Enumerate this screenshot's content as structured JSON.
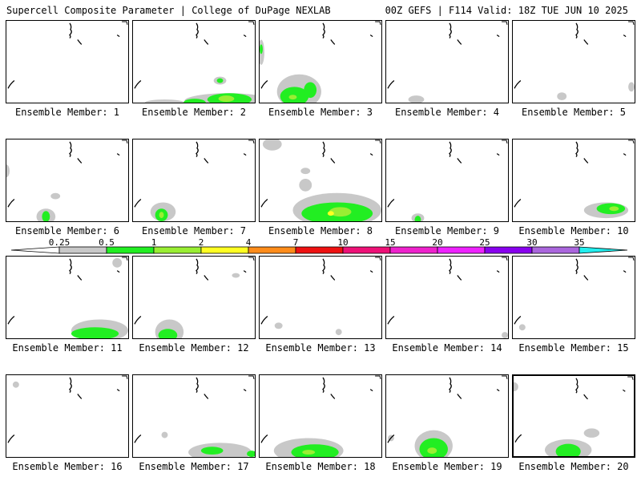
{
  "header": {
    "left_title": "Supercell Composite Parameter | College of DuPage NEXLAB",
    "right_title": "00Z GEFS | F114 Valid: 18Z TUE JUN 10 2025"
  },
  "colors": {
    "c1": "#c8c8c8",
    "c2": "#22ee22",
    "c3": "#99ee33",
    "c4": "#ffff22",
    "c5": "#ff8c1a",
    "c6": "#ee1111",
    "c7": "#ee1177",
    "c8": "#ee22cc",
    "c9": "#ee22ff",
    "c10": "#8800ee",
    "c11": "#aa66dd",
    "c12": "#22eeee"
  },
  "legend": {
    "ticks": [
      "0.25",
      "0.5",
      "1",
      "2",
      "4",
      "7",
      "10",
      "15",
      "20",
      "25",
      "30",
      "35"
    ],
    "colors": [
      "#c8c8c8",
      "#22ee22",
      "#99ee33",
      "#ffff22",
      "#ff8c1a",
      "#ee1111",
      "#ee1177",
      "#ee22cc",
      "#ee22ff",
      "#8800ee",
      "#aa66dd",
      "#22eeee"
    ]
  },
  "members": [
    {
      "label": "Ensemble Member: 1",
      "highlight": false
    },
    {
      "label": "Ensemble Member: 2",
      "highlight": false
    },
    {
      "label": "Ensemble Member: 3",
      "highlight": false
    },
    {
      "label": "Ensemble Member: 4",
      "highlight": false
    },
    {
      "label": "Ensemble Member: 5",
      "highlight": false
    },
    {
      "label": "Ensemble Member: 6",
      "highlight": false
    },
    {
      "label": "Ensemble Member: 7",
      "highlight": false
    },
    {
      "label": "Ensemble Member: 8",
      "highlight": false
    },
    {
      "label": "Ensemble Member: 9",
      "highlight": false
    },
    {
      "label": "Ensemble Member: 10",
      "highlight": false
    },
    {
      "label": "Ensemble Member: 11",
      "highlight": false
    },
    {
      "label": "Ensemble Member: 12",
      "highlight": false
    },
    {
      "label": "Ensemble Member: 13",
      "highlight": false
    },
    {
      "label": "Ensemble Member: 14",
      "highlight": false
    },
    {
      "label": "Ensemble Member: 15",
      "highlight": false
    },
    {
      "label": "Ensemble Member: 16",
      "highlight": false
    },
    {
      "label": "Ensemble Member: 17",
      "highlight": false
    },
    {
      "label": "Ensemble Member: 18",
      "highlight": false
    },
    {
      "label": "Ensemble Member: 19",
      "highlight": false
    },
    {
      "label": "Ensemble Member: 20",
      "highlight": true
    }
  ]
}
